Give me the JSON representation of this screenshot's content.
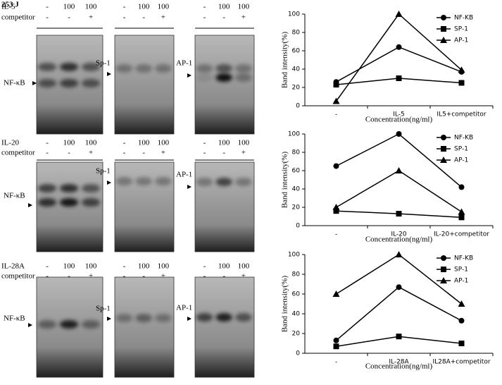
{
  "figure_label": "253 J",
  "gel_rows": [
    {
      "treatment": "IL-5",
      "dose": [
        "-",
        "100",
        "100"
      ],
      "competitor_label": "competitor",
      "competitor": [
        "-",
        "-",
        "+"
      ],
      "panels": [
        "NF-κB",
        "Sp-1",
        "AP-1"
      ]
    },
    {
      "treatment": "IL-20",
      "dose": [
        "-",
        "100",
        "100"
      ],
      "competitor_label": "competitor",
      "competitor": [
        "-",
        "-",
        "+"
      ],
      "panels": [
        "NF-κB",
        "Sp-1",
        "AP-1"
      ]
    },
    {
      "treatment": "IL-28A",
      "dose": [
        "-",
        "100",
        "100"
      ],
      "competitor_label": "competitor",
      "competitor": [
        "-",
        "-",
        "+"
      ],
      "panels": [
        "NF-κB",
        "Sp-1",
        "AP-1"
      ]
    }
  ],
  "chart_data": [
    {
      "type": "line",
      "x_label": "Concentration(ng/ml)",
      "y_label": "Band intensity(%)",
      "categories": [
        "-",
        "IL-5",
        "IL5+competitor"
      ],
      "series": [
        {
          "name": "NF-KB",
          "color": "#000000",
          "marker": "circle",
          "values": [
            26,
            64,
            37
          ]
        },
        {
          "name": "SP-1",
          "color": "#000000",
          "marker": "square",
          "values": [
            23,
            30,
            25
          ]
        },
        {
          "name": "AP-1",
          "color": "#000000",
          "marker": "triangle",
          "values": [
            5,
            100,
            39
          ]
        }
      ],
      "ylim": [
        0,
        100
      ],
      "yticks": [
        0,
        20,
        40,
        60,
        80,
        100
      ],
      "legend": "upper right"
    },
    {
      "type": "line",
      "x_label": "Concentration(ng/ml)",
      "y_label": "Band intensity(%)",
      "categories": [
        "-",
        "IL-20",
        "IL-20+competitor"
      ],
      "series": [
        {
          "name": "NF-KB",
          "color": "#000000",
          "marker": "circle",
          "values": [
            65,
            100,
            42
          ]
        },
        {
          "name": "SP-1",
          "color": "#000000",
          "marker": "square",
          "values": [
            16,
            13,
            9
          ]
        },
        {
          "name": "AP-1",
          "color": "#000000",
          "marker": "triangle",
          "values": [
            20,
            60,
            15
          ]
        }
      ],
      "ylim": [
        0,
        100
      ],
      "yticks": [
        0,
        20,
        40,
        60,
        80,
        100
      ],
      "legend": "upper right"
    },
    {
      "type": "line",
      "x_label": "Concentration(ng/ml)",
      "y_label": "Band intensity(%)",
      "categories": [
        "-",
        "IL-28A",
        "IL28A+competitor"
      ],
      "series": [
        {
          "name": "NF-KB",
          "color": "#000000",
          "marker": "circle",
          "values": [
            13,
            67,
            33
          ]
        },
        {
          "name": "SP-1",
          "color": "#000000",
          "marker": "square",
          "values": [
            7,
            17,
            10
          ]
        },
        {
          "name": "AP-1",
          "color": "#000000",
          "marker": "triangle",
          "values": [
            60,
            100,
            50
          ]
        }
      ],
      "ylim": [
        0,
        100
      ],
      "yticks": [
        0,
        20,
        40,
        60,
        80,
        100
      ],
      "legend": "upper right"
    }
  ]
}
